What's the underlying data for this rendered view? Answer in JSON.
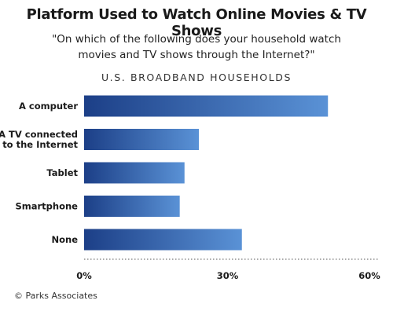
{
  "chart_data": {
    "type": "bar",
    "orientation": "horizontal",
    "title": "Platform Used to Watch Online Movies & TV Shows",
    "subtitle": "\"On which of the following does your household watch movies and TV shows through the Internet?\"",
    "group_label": "U.S. BROADBAND HOUSEHOLDS",
    "categories": [
      "A computer",
      "A TV connected to the Internet",
      "Tablet",
      "Smartphone",
      "None"
    ],
    "category_lines": [
      [
        "A computer"
      ],
      [
        "A TV connected",
        "to the Internet"
      ],
      [
        "Tablet"
      ],
      [
        "Smartphone"
      ],
      [
        "None"
      ]
    ],
    "values": [
      51,
      24,
      21,
      20,
      33
    ],
    "xlim": [
      0,
      60
    ],
    "xticks": [
      0,
      30,
      60
    ],
    "xtick_labels": [
      "0%",
      "30%",
      "60%"
    ],
    "colors": {
      "bar_start": "#1c3f87",
      "bar_end": "#5a92d6",
      "axis": "#555555"
    },
    "grid": false,
    "source": "© Parks Associates"
  }
}
